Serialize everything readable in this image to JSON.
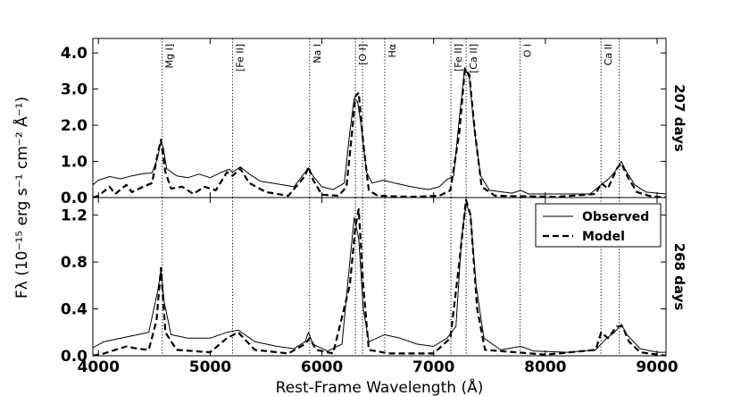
{
  "chart_data": {
    "type": "line",
    "xlabel": "Rest-Frame Wavelength (Å)",
    "ylabel": "Fλ (10⁻¹⁵ erg s⁻¹ cm⁻² Å⁻¹)",
    "xlim": [
      3950,
      9080
    ],
    "x_ticks": [
      4000,
      5000,
      6000,
      7000,
      8000,
      9000
    ],
    "x_tick_labels": [
      "4000",
      "5000",
      "6000",
      "7000",
      "8000",
      "9000"
    ],
    "lines": [
      {
        "label": "Mg I]",
        "x": 4571
      },
      {
        "label": "[Fe II]",
        "x": 5200
      },
      {
        "label": "Na I",
        "x": 5890
      },
      {
        "label": "[O I]",
        "x": 6300
      },
      {
        "label": "",
        "x": 6364
      },
      {
        "label": "Hα",
        "x": 6563
      },
      {
        "label": "[Fe II]",
        "x": 7155
      },
      {
        "label": "[Ca II]",
        "x": 7291
      },
      {
        "label": "O I",
        "x": 7774
      },
      {
        "label": "Ca II",
        "x": 8498
      },
      {
        "label": "",
        "x": 8662
      }
    ],
    "legend": {
      "position": "top-right of lower panel",
      "entries": [
        "Observed",
        "Model"
      ]
    },
    "panels": [
      {
        "epoch_label": "207 days",
        "ylim": [
          0,
          4.4
        ],
        "y_ticks": [
          0,
          1,
          2,
          3,
          4
        ],
        "y_tick_labels": [
          "0.0",
          "1.0",
          "2.0",
          "3.0",
          "4.0"
        ],
        "series": [
          {
            "name": "Observed",
            "style": "solid",
            "points": [
              [
                3950,
                0.35
              ],
              [
                4000,
                0.48
              ],
              [
                4100,
                0.58
              ],
              [
                4200,
                0.52
              ],
              [
                4300,
                0.6
              ],
              [
                4400,
                0.66
              ],
              [
                4480,
                0.68
              ],
              [
                4530,
                1.1
              ],
              [
                4555,
                1.5
              ],
              [
                4580,
                1.4
              ],
              [
                4610,
                0.8
              ],
              [
                4700,
                0.6
              ],
              [
                4800,
                0.55
              ],
              [
                4900,
                0.65
              ],
              [
                5000,
                0.55
              ],
              [
                5100,
                0.7
              ],
              [
                5170,
                0.78
              ],
              [
                5200,
                0.7
              ],
              [
                5270,
                0.85
              ],
              [
                5350,
                0.65
              ],
              [
                5450,
                0.45
              ],
              [
                5550,
                0.4
              ],
              [
                5650,
                0.35
              ],
              [
                5750,
                0.3
              ],
              [
                5850,
                0.7
              ],
              [
                5880,
                0.82
              ],
              [
                5920,
                0.6
              ],
              [
                6000,
                0.3
              ],
              [
                6100,
                0.22
              ],
              [
                6200,
                0.4
              ],
              [
                6250,
                1.8
              ],
              [
                6290,
                2.75
              ],
              [
                6320,
                2.65
              ],
              [
                6350,
                2.0
              ],
              [
                6400,
                0.7
              ],
              [
                6450,
                0.4
              ],
              [
                6550,
                0.48
              ],
              [
                6650,
                0.4
              ],
              [
                6800,
                0.3
              ],
              [
                6950,
                0.22
              ],
              [
                7050,
                0.3
              ],
              [
                7120,
                0.5
              ],
              [
                7180,
                0.6
              ],
              [
                7230,
                2.2
              ],
              [
                7280,
                3.6
              ],
              [
                7320,
                3.3
              ],
              [
                7360,
                2.0
              ],
              [
                7420,
                0.6
              ],
              [
                7500,
                0.2
              ],
              [
                7700,
                0.12
              ],
              [
                7780,
                0.2
              ],
              [
                7850,
                0.1
              ],
              [
                8100,
                0.1
              ],
              [
                8400,
                0.1
              ],
              [
                8500,
                0.35
              ],
              [
                8560,
                0.5
              ],
              [
                8620,
                0.7
              ],
              [
                8680,
                1.0
              ],
              [
                8720,
                0.75
              ],
              [
                8800,
                0.35
              ],
              [
                8900,
                0.15
              ],
              [
                9080,
                0.1
              ]
            ]
          },
          {
            "name": "Model",
            "style": "dashed",
            "points": [
              [
                3950,
                0.0
              ],
              [
                4000,
                0.05
              ],
              [
                4100,
                0.3
              ],
              [
                4150,
                0.1
              ],
              [
                4250,
                0.35
              ],
              [
                4300,
                0.15
              ],
              [
                4400,
                0.3
              ],
              [
                4480,
                0.4
              ],
              [
                4530,
                1.2
              ],
              [
                4560,
                1.6
              ],
              [
                4600,
                0.7
              ],
              [
                4650,
                0.25
              ],
              [
                4750,
                0.3
              ],
              [
                4850,
                0.1
              ],
              [
                4950,
                0.3
              ],
              [
                5050,
                0.2
              ],
              [
                5150,
                0.7
              ],
              [
                5200,
                0.6
              ],
              [
                5270,
                0.8
              ],
              [
                5350,
                0.4
              ],
              [
                5500,
                0.15
              ],
              [
                5700,
                0.05
              ],
              [
                5850,
                0.6
              ],
              [
                5880,
                0.85
              ],
              [
                5920,
                0.5
              ],
              [
                6000,
                0.08
              ],
              [
                6150,
                0.05
              ],
              [
                6220,
                0.3
              ],
              [
                6270,
                1.8
              ],
              [
                6300,
                2.8
              ],
              [
                6330,
                2.9
              ],
              [
                6370,
                1.5
              ],
              [
                6420,
                0.2
              ],
              [
                6500,
                0.05
              ],
              [
                6800,
                0.02
              ],
              [
                7050,
                0.05
              ],
              [
                7150,
                0.2
              ],
              [
                7230,
                1.8
              ],
              [
                7280,
                3.55
              ],
              [
                7320,
                3.4
              ],
              [
                7370,
                1.8
              ],
              [
                7430,
                0.3
              ],
              [
                7550,
                0.05
              ],
              [
                8100,
                0.02
              ],
              [
                8450,
                0.1
              ],
              [
                8500,
                0.4
              ],
              [
                8560,
                0.25
              ],
              [
                8640,
                0.8
              ],
              [
                8680,
                0.95
              ],
              [
                8740,
                0.55
              ],
              [
                8820,
                0.15
              ],
              [
                8950,
                0.03
              ],
              [
                9080,
                0.0
              ]
            ]
          }
        ]
      },
      {
        "epoch_label": "268 days",
        "ylim": [
          0,
          1.35
        ],
        "y_ticks": [
          0,
          0.4,
          0.8,
          1.2
        ],
        "y_tick_labels": [
          "0.0",
          "0.4",
          "0.8",
          "1.2"
        ],
        "series": [
          {
            "name": "Observed",
            "style": "solid",
            "points": [
              [
                3950,
                0.07
              ],
              [
                4050,
                0.12
              ],
              [
                4200,
                0.15
              ],
              [
                4350,
                0.18
              ],
              [
                4450,
                0.2
              ],
              [
                4530,
                0.55
              ],
              [
                4560,
                0.73
              ],
              [
                4590,
                0.45
              ],
              [
                4650,
                0.18
              ],
              [
                4800,
                0.15
              ],
              [
                5000,
                0.15
              ],
              [
                5150,
                0.2
              ],
              [
                5250,
                0.22
              ],
              [
                5400,
                0.12
              ],
              [
                5600,
                0.08
              ],
              [
                5750,
                0.06
              ],
              [
                5850,
                0.12
              ],
              [
                5880,
                0.2
              ],
              [
                5920,
                0.1
              ],
              [
                6050,
                0.04
              ],
              [
                6180,
                0.1
              ],
              [
                6250,
                0.8
              ],
              [
                6290,
                1.18
              ],
              [
                6330,
                1.0
              ],
              [
                6370,
                0.4
              ],
              [
                6420,
                0.12
              ],
              [
                6560,
                0.18
              ],
              [
                6700,
                0.15
              ],
              [
                6850,
                0.1
              ],
              [
                7000,
                0.08
              ],
              [
                7120,
                0.15
              ],
              [
                7200,
                0.25
              ],
              [
                7250,
                1.0
              ],
              [
                7290,
                1.3
              ],
              [
                7330,
                1.2
              ],
              [
                7380,
                0.6
              ],
              [
                7450,
                0.15
              ],
              [
                7600,
                0.05
              ],
              [
                7780,
                0.08
              ],
              [
                7900,
                0.04
              ],
              [
                8200,
                0.03
              ],
              [
                8450,
                0.05
              ],
              [
                8550,
                0.15
              ],
              [
                8620,
                0.2
              ],
              [
                8680,
                0.27
              ],
              [
                8730,
                0.18
              ],
              [
                8850,
                0.06
              ],
              [
                9000,
                0.03
              ],
              [
                9080,
                0.03
              ]
            ]
          },
          {
            "name": "Model",
            "style": "dashed",
            "points": [
              [
                3950,
                0.0
              ],
              [
                4050,
                0.02
              ],
              [
                4150,
                0.05
              ],
              [
                4250,
                0.08
              ],
              [
                4350,
                0.06
              ],
              [
                4450,
                0.05
              ],
              [
                4520,
                0.3
              ],
              [
                4560,
                0.75
              ],
              [
                4600,
                0.2
              ],
              [
                4700,
                0.05
              ],
              [
                5000,
                0.03
              ],
              [
                5150,
                0.15
              ],
              [
                5250,
                0.2
              ],
              [
                5400,
                0.05
              ],
              [
                5700,
                0.02
              ],
              [
                5850,
                0.1
              ],
              [
                5890,
                0.15
              ],
              [
                5950,
                0.05
              ],
              [
                6100,
                0.02
              ],
              [
                6250,
                0.6
              ],
              [
                6300,
                1.1
              ],
              [
                6330,
                1.25
              ],
              [
                6370,
                0.6
              ],
              [
                6420,
                0.05
              ],
              [
                6600,
                0.02
              ],
              [
                7000,
                0.02
              ],
              [
                7150,
                0.15
              ],
              [
                7230,
                0.8
              ],
              [
                7290,
                1.33
              ],
              [
                7330,
                1.2
              ],
              [
                7390,
                0.4
              ],
              [
                7460,
                0.05
              ],
              [
                8000,
                0.01
              ],
              [
                8450,
                0.05
              ],
              [
                8500,
                0.2
              ],
              [
                8560,
                0.15
              ],
              [
                8640,
                0.25
              ],
              [
                8690,
                0.25
              ],
              [
                8750,
                0.12
              ],
              [
                8850,
                0.03
              ],
              [
                9080,
                0.0
              ]
            ]
          }
        ]
      }
    ]
  }
}
